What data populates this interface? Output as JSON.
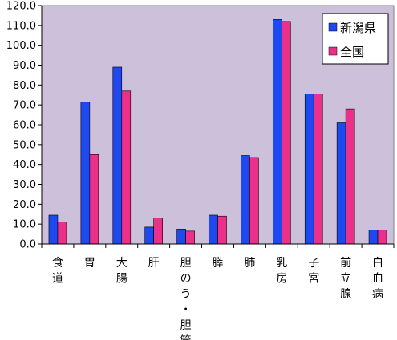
{
  "chart_data": {
    "type": "bar",
    "title": "",
    "xlabel": "",
    "ylabel": "",
    "ylim": [
      0,
      120
    ],
    "ytick_step": 10,
    "ytick_labels": [
      "0.0",
      "10.0",
      "20.0",
      "30.0",
      "40.0",
      "50.0",
      "60.0",
      "70.0",
      "80.0",
      "90.0",
      "100.0",
      "110.0",
      "120.0"
    ],
    "categories": [
      "食道",
      "胃",
      "大腸",
      "肝",
      "胆のう・胆管",
      "膵",
      "肺",
      "乳房",
      "子宮",
      "前立腺",
      "白血病"
    ],
    "series": [
      {
        "name": "新潟県",
        "color": "#1e48f0",
        "values": [
          14.5,
          71.5,
          89.0,
          8.5,
          7.5,
          14.5,
          44.5,
          113.0,
          75.5,
          61.0,
          7.0
        ]
      },
      {
        "name": "全国",
        "color": "#ec2f8a",
        "values": [
          11.0,
          45.0,
          77.0,
          13.0,
          6.5,
          14.0,
          43.5,
          112.0,
          75.5,
          68.0,
          7.0
        ]
      }
    ],
    "plot_background": "#ccc0da",
    "grid": false,
    "legend_position": "top-right"
  }
}
